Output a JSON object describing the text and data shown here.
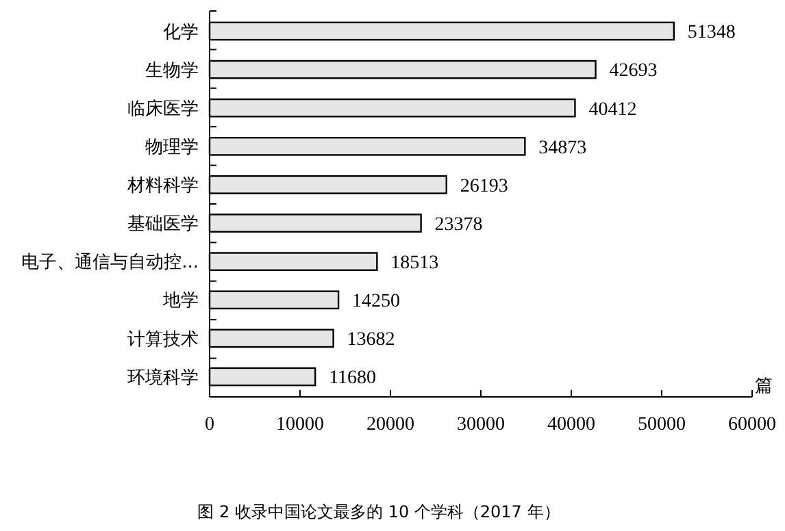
{
  "chart_data": {
    "type": "bar",
    "orientation": "horizontal",
    "title": "图 2 收录中国论文最多的 10 个学科（2017 年）",
    "xlabel": "篇",
    "categories": [
      "化学",
      "生物学",
      "临床医学",
      "物理学",
      "材料科学",
      "基础医学",
      "电子、通信与自动控...",
      "地学",
      "计算技术",
      "环境科学"
    ],
    "values": [
      51348,
      42693,
      40412,
      34873,
      26193,
      23378,
      18513,
      14250,
      13682,
      11680
    ],
    "color": "#e6e6e6",
    "xlim": [
      0,
      60000
    ],
    "xticks": [
      0,
      10000,
      20000,
      30000,
      40000,
      50000,
      60000
    ],
    "data_labels": true,
    "grid": false
  }
}
